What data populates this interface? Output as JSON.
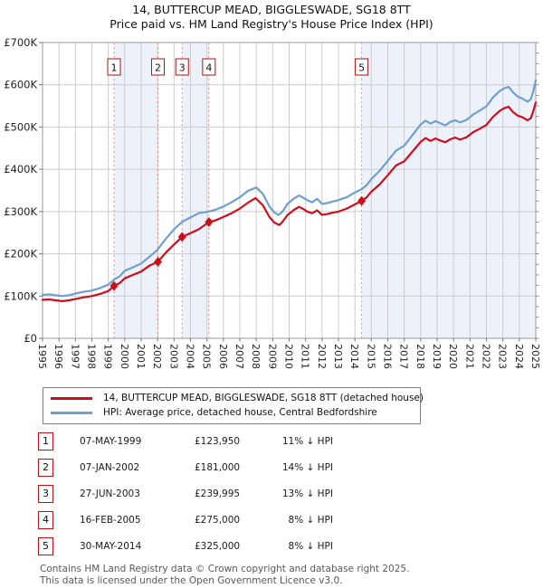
{
  "chart_data": {
    "type": "line",
    "title": "14, BUTTERCUP MEAD, BIGGLESWADE, SG18 8TT",
    "subtitle": "Price paid vs. HM Land Registry's House Price Index (HPI)",
    "x_range": [
      1995,
      2025
    ],
    "y_range_k": [
      0,
      700
    ],
    "grid": true,
    "x_ticks": [
      1995,
      1996,
      1997,
      1998,
      1999,
      2000,
      2001,
      2002,
      2003,
      2004,
      2005,
      2006,
      2007,
      2008,
      2009,
      2010,
      2011,
      2012,
      2013,
      2014,
      2015,
      2016,
      2017,
      2018,
      2019,
      2020,
      2021,
      2022,
      2023,
      2024,
      2025
    ],
    "y_ticks": [
      {
        "v": 700,
        "label": "£700K"
      },
      {
        "v": 600,
        "label": "£600K"
      },
      {
        "v": 500,
        "label": "£500K"
      },
      {
        "v": 400,
        "label": "£400K"
      },
      {
        "v": 300,
        "label": "£300K"
      },
      {
        "v": 200,
        "label": "£200K"
      },
      {
        "v": 100,
        "label": "£100K"
      },
      {
        "v": 0,
        "label": "£0"
      }
    ],
    "series": [
      {
        "name": "14, BUTTERCUP MEAD, BIGGLESWADE, SG18 8TT (detached house)",
        "color": "#cc0f1d",
        "points": [
          [
            1995.0,
            91
          ],
          [
            1995.4,
            92
          ],
          [
            1995.8,
            90
          ],
          [
            1996.2,
            88
          ],
          [
            1996.6,
            90
          ],
          [
            1997.0,
            93
          ],
          [
            1997.5,
            97
          ],
          [
            1998.0,
            100
          ],
          [
            1998.5,
            105
          ],
          [
            1999.0,
            112
          ],
          [
            1999.35,
            124
          ],
          [
            1999.7,
            131
          ],
          [
            2000.0,
            142
          ],
          [
            2000.5,
            150
          ],
          [
            2001.0,
            158
          ],
          [
            2001.5,
            172
          ],
          [
            2002.02,
            181
          ],
          [
            2002.5,
            203
          ],
          [
            2003.0,
            222
          ],
          [
            2003.49,
            240
          ],
          [
            2004.0,
            249
          ],
          [
            2004.5,
            258
          ],
          [
            2005.12,
            275
          ],
          [
            2005.5,
            279
          ],
          [
            2006.0,
            287
          ],
          [
            2006.5,
            296
          ],
          [
            2007.0,
            307
          ],
          [
            2007.5,
            321
          ],
          [
            2007.95,
            332
          ],
          [
            2008.4,
            315
          ],
          [
            2008.8,
            287
          ],
          [
            2009.1,
            274
          ],
          [
            2009.4,
            268
          ],
          [
            2009.6,
            276
          ],
          [
            2009.9,
            292
          ],
          [
            2010.3,
            304
          ],
          [
            2010.6,
            311
          ],
          [
            2010.9,
            305
          ],
          [
            2011.1,
            300
          ],
          [
            2011.4,
            296
          ],
          [
            2011.7,
            303
          ],
          [
            2012.0,
            292
          ],
          [
            2012.3,
            294
          ],
          [
            2012.6,
            297
          ],
          [
            2013.0,
            300
          ],
          [
            2013.5,
            307
          ],
          [
            2014.0,
            317
          ],
          [
            2014.41,
            325
          ],
          [
            2014.7,
            333
          ],
          [
            2015.0,
            347
          ],
          [
            2015.5,
            364
          ],
          [
            2016.0,
            386
          ],
          [
            2016.5,
            409
          ],
          [
            2017.0,
            419
          ],
          [
            2017.5,
            442
          ],
          [
            2018.0,
            465
          ],
          [
            2018.3,
            474
          ],
          [
            2018.6,
            467
          ],
          [
            2018.9,
            473
          ],
          [
            2019.2,
            468
          ],
          [
            2019.5,
            464
          ],
          [
            2019.8,
            471
          ],
          [
            2020.1,
            475
          ],
          [
            2020.4,
            470
          ],
          [
            2020.8,
            476
          ],
          [
            2021.2,
            488
          ],
          [
            2021.6,
            496
          ],
          [
            2022.0,
            505
          ],
          [
            2022.4,
            524
          ],
          [
            2022.8,
            538
          ],
          [
            2023.1,
            545
          ],
          [
            2023.35,
            548
          ],
          [
            2023.6,
            536
          ],
          [
            2023.9,
            527
          ],
          [
            2024.2,
            523
          ],
          [
            2024.5,
            516
          ],
          [
            2024.7,
            521
          ],
          [
            2024.85,
            538
          ],
          [
            2025.0,
            558
          ]
        ]
      },
      {
        "name": "HPI: Average price, detached house, Central Bedfordshire",
        "color": "#6f9fce",
        "points": [
          [
            1995.0,
            103
          ],
          [
            1995.4,
            104
          ],
          [
            1995.8,
            102
          ],
          [
            1996.2,
            100
          ],
          [
            1996.6,
            102
          ],
          [
            1997.0,
            106
          ],
          [
            1997.5,
            110
          ],
          [
            1998.0,
            113
          ],
          [
            1998.5,
            119
          ],
          [
            1999.0,
            127
          ],
          [
            1999.35,
            139
          ],
          [
            1999.7,
            147
          ],
          [
            2000.0,
            160
          ],
          [
            2000.5,
            168
          ],
          [
            2001.0,
            177
          ],
          [
            2001.5,
            193
          ],
          [
            2002.0,
            210
          ],
          [
            2002.5,
            236
          ],
          [
            2003.0,
            258
          ],
          [
            2003.5,
            276
          ],
          [
            2004.0,
            286
          ],
          [
            2004.5,
            296
          ],
          [
            2005.1,
            300
          ],
          [
            2005.5,
            304
          ],
          [
            2006.0,
            312
          ],
          [
            2006.5,
            322
          ],
          [
            2007.0,
            334
          ],
          [
            2007.5,
            349
          ],
          [
            2008.0,
            357
          ],
          [
            2008.4,
            342
          ],
          [
            2008.8,
            312
          ],
          [
            2009.1,
            298
          ],
          [
            2009.35,
            292
          ],
          [
            2009.6,
            300
          ],
          [
            2009.9,
            318
          ],
          [
            2010.3,
            331
          ],
          [
            2010.6,
            338
          ],
          [
            2010.9,
            332
          ],
          [
            2011.1,
            327
          ],
          [
            2011.4,
            322
          ],
          [
            2011.7,
            330
          ],
          [
            2012.0,
            318
          ],
          [
            2012.3,
            320
          ],
          [
            2012.6,
            323
          ],
          [
            2013.0,
            327
          ],
          [
            2013.5,
            334
          ],
          [
            2014.0,
            345
          ],
          [
            2014.41,
            353
          ],
          [
            2014.7,
            362
          ],
          [
            2015.0,
            377
          ],
          [
            2015.5,
            396
          ],
          [
            2016.0,
            420
          ],
          [
            2016.5,
            444
          ],
          [
            2017.0,
            456
          ],
          [
            2017.5,
            481
          ],
          [
            2018.0,
            506
          ],
          [
            2018.3,
            515
          ],
          [
            2018.6,
            508
          ],
          [
            2018.9,
            514
          ],
          [
            2019.2,
            509
          ],
          [
            2019.5,
            504
          ],
          [
            2019.8,
            512
          ],
          [
            2020.1,
            516
          ],
          [
            2020.4,
            511
          ],
          [
            2020.8,
            517
          ],
          [
            2021.2,
            530
          ],
          [
            2021.6,
            539
          ],
          [
            2022.0,
            549
          ],
          [
            2022.4,
            570
          ],
          [
            2022.8,
            585
          ],
          [
            2023.1,
            592
          ],
          [
            2023.35,
            595
          ],
          [
            2023.6,
            583
          ],
          [
            2023.9,
            572
          ],
          [
            2024.2,
            567
          ],
          [
            2024.5,
            560
          ],
          [
            2024.7,
            566
          ],
          [
            2024.85,
            585
          ],
          [
            2025.0,
            610
          ]
        ]
      }
    ],
    "sales": [
      {
        "label": "1",
        "x": 1999.35,
        "price": 123950
      },
      {
        "label": "2",
        "x": 2002.02,
        "price": 181000
      },
      {
        "label": "3",
        "x": 2003.49,
        "price": 239995
      },
      {
        "label": "4",
        "x": 2005.12,
        "price": 275000
      },
      {
        "label": "5",
        "x": 2014.41,
        "price": 325000
      }
    ],
    "ownership_bands": [
      [
        1999.35,
        2002.02
      ],
      [
        2003.49,
        2005.12
      ],
      [
        2014.41,
        2025.0
      ]
    ],
    "legend_position": "below"
  },
  "colors": {
    "band": "#edf2fa",
    "grid": "#cccccc",
    "border": "#999999",
    "tick": "#777777",
    "sale_dash": "#ee8a8a",
    "annotation_border": "#aa1111",
    "marker": "#cc0f1d"
  },
  "legend": {
    "items": [
      {
        "label": "14, BUTTERCUP MEAD, BIGGLESWADE, SG18 8TT (detached house)",
        "color": "#cc0f1d"
      },
      {
        "label": "HPI: Average price, detached house, Central Bedfordshire",
        "color": "#6f9fce"
      }
    ]
  },
  "table": {
    "rows": [
      {
        "num": "1",
        "date": "07-MAY-1999",
        "price": "£123,950",
        "pct": "11% ↓ HPI"
      },
      {
        "num": "2",
        "date": "07-JAN-2002",
        "price": "£181,000",
        "pct": "14% ↓ HPI"
      },
      {
        "num": "3",
        "date": "27-JUN-2003",
        "price": "£239,995",
        "pct": "13% ↓ HPI"
      },
      {
        "num": "4",
        "date": "16-FEB-2005",
        "price": "£275,000",
        "pct": "8% ↓ HPI"
      },
      {
        "num": "5",
        "date": "30-MAY-2014",
        "price": "£325,000",
        "pct": "8% ↓ HPI"
      }
    ]
  },
  "footer": {
    "line1": "Contains HM Land Registry data © Crown copyright and database right 2025.",
    "line2": "This data is licensed under the Open Government Licence v3.0."
  }
}
